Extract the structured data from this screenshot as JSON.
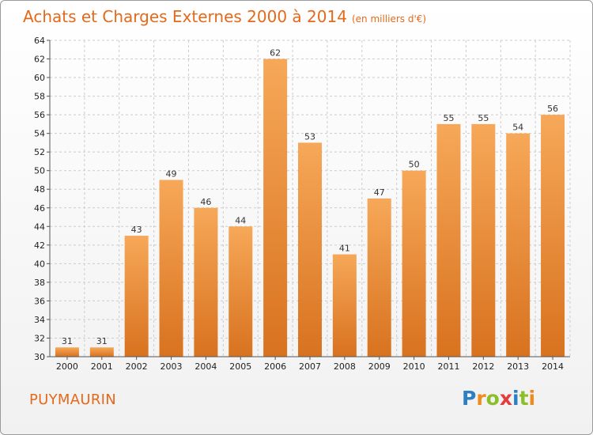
{
  "title": "Achats et Charges Externes 2000 à 2014",
  "subtitle": "(en milliers d'€)",
  "town": "PUYMAURIN",
  "logo": {
    "text": "Proxiti",
    "letters": [
      {
        "ch": "P",
        "color": "#2e7fc1"
      },
      {
        "ch": "r",
        "color": "#f08a1c"
      },
      {
        "ch": "o",
        "color": "#8bbf2a"
      },
      {
        "ch": "x",
        "color": "#e43c3c"
      },
      {
        "ch": "i",
        "color": "#2e7fc1"
      },
      {
        "ch": "t",
        "color": "#8bbf2a"
      },
      {
        "ch": "i",
        "color": "#f08a1c"
      }
    ]
  },
  "colors": {
    "accent": "#e4691a",
    "bar_top": "#f6a858",
    "bar_bottom": "#d8721f",
    "grid": "#cccccc"
  },
  "chart_data": {
    "type": "bar",
    "title": "Achats et Charges Externes 2000 à 2014",
    "subtitle": "(en milliers d'€)",
    "categories": [
      "2000",
      "2001",
      "2002",
      "2003",
      "2004",
      "2005",
      "2006",
      "2007",
      "2008",
      "2009",
      "2010",
      "2011",
      "2012",
      "2013",
      "2014"
    ],
    "values": [
      31,
      31,
      43,
      49,
      46,
      44,
      62,
      53,
      41,
      47,
      50,
      55,
      55,
      54,
      56
    ],
    "ylim": [
      30,
      64
    ],
    "ytick_step": 2,
    "grid": true,
    "data_labels": true
  }
}
